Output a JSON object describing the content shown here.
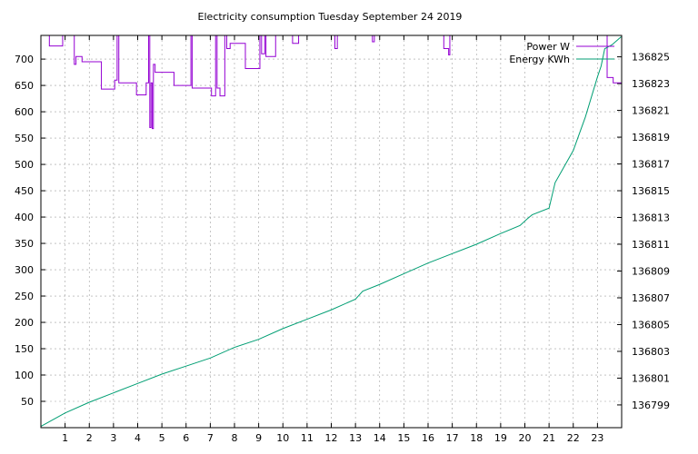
{
  "chart_data": {
    "type": "line",
    "title": "Electricity consumption Tuesday September 24 2019",
    "x_ticks": [
      "1",
      "2",
      "3",
      "4",
      "5",
      "6",
      "7",
      "8",
      "9",
      "10",
      "11",
      "12",
      "13",
      "14",
      "15",
      "16",
      "17",
      "18",
      "19",
      "20",
      "21",
      "22",
      "23"
    ],
    "xlim": [
      0,
      24
    ],
    "y_left_ticks": [
      50,
      100,
      150,
      200,
      250,
      300,
      350,
      400,
      450,
      500,
      550,
      600,
      650,
      700
    ],
    "y_left_lim": [
      0,
      745
    ],
    "y_right_ticks": [
      "136799",
      "136801",
      "136803",
      "136805",
      "136807",
      "136809",
      "136811",
      "136813",
      "136815",
      "136817",
      "136819",
      "136821",
      "136823",
      "136825"
    ],
    "y_right_lim": [
      136797.3,
      136826.6
    ],
    "grid": true,
    "legend_position": "top-right",
    "series": [
      {
        "name": "Power W",
        "axis": "left",
        "color": "#9400d3",
        "points": [
          [
            0.35,
            745
          ],
          [
            0.35,
            725
          ],
          [
            0.9,
            725
          ],
          [
            0.9,
            745
          ],
          [
            1.38,
            745
          ],
          [
            1.38,
            690
          ],
          [
            1.45,
            690
          ],
          [
            1.45,
            705
          ],
          [
            1.7,
            705
          ],
          [
            1.7,
            695
          ],
          [
            2.5,
            695
          ],
          [
            2.5,
            643
          ],
          [
            3.05,
            643
          ],
          [
            3.05,
            660
          ],
          [
            3.15,
            660
          ],
          [
            3.15,
            745
          ],
          [
            3.22,
            745
          ],
          [
            3.22,
            655
          ],
          [
            3.95,
            655
          ],
          [
            3.95,
            632
          ],
          [
            4.35,
            632
          ],
          [
            4.35,
            655
          ],
          [
            4.45,
            655
          ],
          [
            4.45,
            745
          ],
          [
            4.5,
            745
          ],
          [
            4.5,
            570
          ],
          [
            4.55,
            570
          ],
          [
            4.55,
            655
          ],
          [
            4.6,
            655
          ],
          [
            4.6,
            568
          ],
          [
            4.65,
            568
          ],
          [
            4.65,
            690
          ],
          [
            4.72,
            690
          ],
          [
            4.72,
            675
          ],
          [
            5.5,
            675
          ],
          [
            5.5,
            650
          ],
          [
            6.2,
            650
          ],
          [
            6.2,
            745
          ],
          [
            6.25,
            745
          ],
          [
            6.25,
            645
          ],
          [
            7.05,
            645
          ],
          [
            7.05,
            630
          ],
          [
            7.22,
            630
          ],
          [
            7.22,
            745
          ],
          [
            7.28,
            745
          ],
          [
            7.28,
            645
          ],
          [
            7.4,
            645
          ],
          [
            7.4,
            630
          ],
          [
            7.6,
            630
          ],
          [
            7.6,
            745
          ],
          [
            7.68,
            745
          ],
          [
            7.68,
            720
          ],
          [
            7.82,
            720
          ],
          [
            7.82,
            730
          ],
          [
            8.45,
            730
          ],
          [
            8.45,
            682
          ],
          [
            9.05,
            682
          ],
          [
            9.05,
            745
          ],
          [
            9.12,
            745
          ],
          [
            9.12,
            710
          ],
          [
            9.25,
            710
          ],
          [
            9.25,
            745
          ],
          [
            9.3,
            745
          ],
          [
            9.3,
            705
          ],
          [
            9.7,
            705
          ],
          [
            9.7,
            745
          ],
          [
            10.4,
            745
          ],
          [
            10.4,
            730
          ],
          [
            10.65,
            730
          ],
          [
            10.65,
            745
          ],
          [
            12.15,
            745
          ],
          [
            12.15,
            720
          ],
          [
            12.25,
            720
          ],
          [
            12.25,
            745
          ],
          [
            13.7,
            745
          ],
          [
            13.7,
            733
          ],
          [
            13.78,
            733
          ],
          [
            13.78,
            745
          ],
          [
            16.65,
            745
          ],
          [
            16.65,
            720
          ],
          [
            16.85,
            720
          ],
          [
            16.85,
            708
          ],
          [
            16.9,
            708
          ],
          [
            16.9,
            745
          ],
          [
            23.4,
            745
          ],
          [
            23.4,
            665
          ],
          [
            23.65,
            665
          ],
          [
            23.65,
            655
          ],
          [
            23.98,
            655
          ]
        ]
      },
      {
        "name": "Energy KWh",
        "axis": "right",
        "color": "#009e73",
        "points": [
          [
            0,
            136797.4
          ],
          [
            1,
            136798.4
          ],
          [
            2,
            136799.2
          ],
          [
            3,
            136799.9
          ],
          [
            4,
            136800.6
          ],
          [
            5,
            136801.3
          ],
          [
            6,
            136801.9
          ],
          [
            7,
            136802.5
          ],
          [
            8,
            136803.3
          ],
          [
            9,
            136803.9
          ],
          [
            10,
            136804.7
          ],
          [
            11,
            136805.4
          ],
          [
            12,
            136806.1
          ],
          [
            13,
            136806.9
          ],
          [
            13.3,
            136807.5
          ],
          [
            14,
            136808.0
          ],
          [
            15,
            136808.8
          ],
          [
            16,
            136809.6
          ],
          [
            17,
            136810.3
          ],
          [
            18,
            136811.0
          ],
          [
            19,
            136811.8
          ],
          [
            19.8,
            136812.4
          ],
          [
            20.1,
            136812.9
          ],
          [
            20.3,
            136813.2
          ],
          [
            21,
            136813.7
          ],
          [
            21.25,
            136815.6
          ],
          [
            21.5,
            136816.4
          ],
          [
            22,
            136818.0
          ],
          [
            22.5,
            136820.5
          ],
          [
            23,
            136823.5
          ],
          [
            23.15,
            136824.3
          ],
          [
            23.3,
            136825.6
          ],
          [
            23.6,
            136825.9
          ],
          [
            23.98,
            136826.5
          ]
        ]
      }
    ]
  }
}
